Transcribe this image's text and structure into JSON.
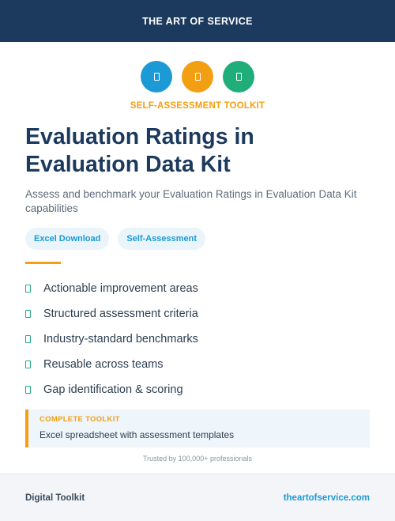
{
  "header": {
    "brand": "THE ART OF SERVICE"
  },
  "icons": [
    {
      "name": "document-icon",
      "color": "#1b9ad6"
    },
    {
      "name": "document-icon",
      "color": "#f29f12"
    },
    {
      "name": "document-icon",
      "color": "#1fae7a"
    }
  ],
  "eyebrow": "SELF-ASSESSMENT TOOLKIT",
  "title": "Evaluation Ratings in Evaluation Data Kit",
  "subtitle": "Assess and benchmark your Evaluation Ratings in Evaluation Data Kit capabilities",
  "tags": [
    "Excel Download",
    "Self-Assessment"
  ],
  "features": [
    "Actionable improvement areas",
    "Structured assessment criteria",
    "Industry-standard benchmarks",
    "Reusable across teams",
    "Gap identification & scoring"
  ],
  "callout": {
    "label": "COMPLETE TOOLKIT",
    "text": "Excel spreadsheet with assessment templates"
  },
  "trusted": "Trusted by 100,000+ professionals",
  "footer": {
    "left": "Digital Toolkit",
    "right": "theartofservice.com"
  },
  "colors": {
    "navy": "#1c3a5e",
    "accent": "#f29f12",
    "blue": "#1b9ad6",
    "green": "#1fae7a"
  }
}
